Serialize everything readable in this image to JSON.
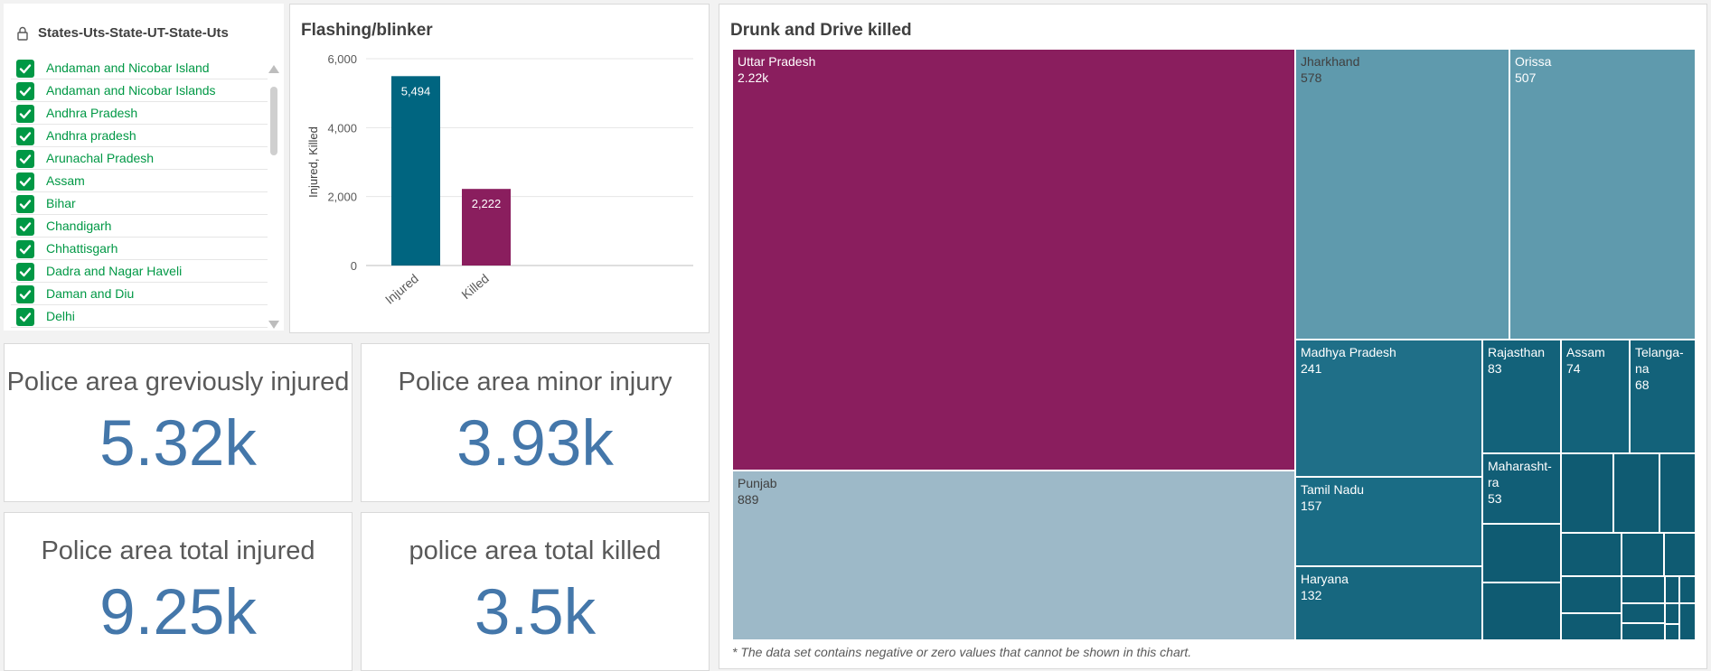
{
  "filter": {
    "title": "States-Uts-State-UT-State-Uts",
    "items": [
      "Andaman and Nicobar Island",
      "Andaman and Nicobar Islands",
      "Andhra Pradesh",
      "Andhra pradesh",
      "Arunachal Pradesh",
      "Assam",
      "Bihar",
      "Chandigarh",
      "Chhattisgarh",
      "Dadra and Nagar Haveli",
      "Daman and Diu",
      "Delhi"
    ],
    "colors": {
      "selected": "#009845"
    }
  },
  "bar_chart": {
    "title": "Flashing/blinker",
    "chart_data": {
      "type": "bar",
      "categories": [
        "Injured",
        "Killed"
      ],
      "values": [
        5494,
        2222
      ],
      "value_labels": [
        "5,494",
        "2,222"
      ],
      "ylabel": "Injured, Killed",
      "ylim": [
        0,
        6000
      ],
      "yticks": [
        0,
        2000,
        4000,
        6000
      ],
      "ytick_labels": [
        "0",
        "2,000",
        "4,000",
        "6,000"
      ],
      "grid": true,
      "colors": [
        "#006580",
        "#8a1e5e"
      ]
    }
  },
  "kpis": [
    {
      "label": "Police area greviously injured",
      "value": "5.32k"
    },
    {
      "label": "Police area minor injury",
      "value": "3.93k"
    },
    {
      "label": "Police area total injured",
      "value": "9.25k"
    },
    {
      "label": "police area total killed",
      "value": "3.5k"
    }
  ],
  "treemap": {
    "title": "Drunk and Drive killed",
    "note": "* The data set contains negative or zero values that cannot be shown in this chart.",
    "chart_data": {
      "type": "treemap",
      "items": [
        {
          "name": "Uttar Pradesh",
          "label": "2.22k",
          "value": 2220,
          "color": "#8a1e5e",
          "text_color": "#ffffff"
        },
        {
          "name": "Punjab",
          "label": "889",
          "value": 889,
          "color": "#9db9c8",
          "text_color": "#404040"
        },
        {
          "name": "Jharkhand",
          "label": "578",
          "value": 578,
          "color": "#5f9aad",
          "text_color": "#404040"
        },
        {
          "name": "Orissa",
          "label": "507",
          "value": 507,
          "color": "#5f9aad",
          "text_color": "#ffffff"
        },
        {
          "name": "Madhya Pradesh",
          "label": "241",
          "value": 241,
          "color": "#1f6f88",
          "text_color": "#ffffff"
        },
        {
          "name": "Tamil Nadu",
          "label": "157",
          "value": 157,
          "color": "#1a6c85",
          "text_color": "#ffffff"
        },
        {
          "name": "Haryana",
          "label": "132",
          "value": 132,
          "color": "#17677f",
          "text_color": "#ffffff"
        },
        {
          "name": "Rajasthan",
          "label": "83",
          "value": 83,
          "color": "#13627a",
          "text_color": "#ffffff"
        },
        {
          "name": "Assam",
          "label": "74",
          "value": 74,
          "color": "#13627a",
          "text_color": "#ffffff"
        },
        {
          "name": "Telanga-na",
          "label": "68",
          "value": 68,
          "color": "#13627a",
          "text_color": "#ffffff"
        },
        {
          "name": "Maharasht-ra",
          "label": "53",
          "value": 53,
          "color": "#115e76",
          "text_color": "#ffffff"
        }
      ],
      "small_tile_color": "#0f5b72"
    }
  }
}
